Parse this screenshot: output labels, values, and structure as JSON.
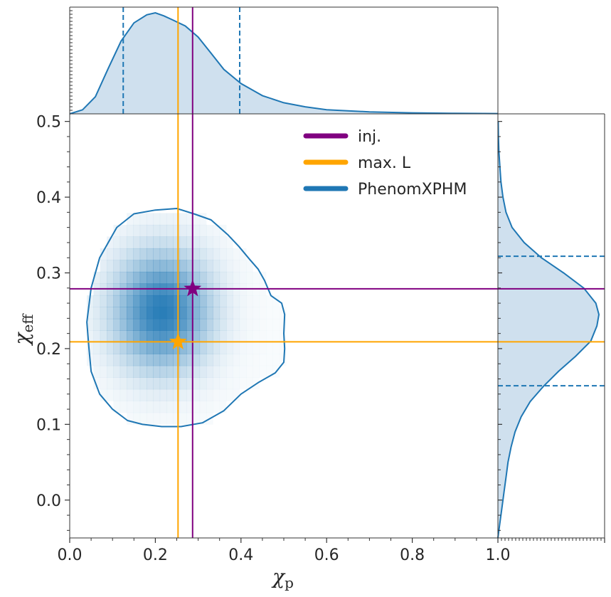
{
  "chart_data": {
    "type": "corner-plot",
    "main": {
      "type": "heatmap",
      "xlabel": "χ",
      "xlabel_sub": "p",
      "ylabel": "χ",
      "ylabel_sub": "eff",
      "xlim": [
        0.0,
        1.0
      ],
      "ylim": [
        -0.05,
        0.51
      ],
      "xticks": [
        "0.0",
        "0.2",
        "0.4",
        "0.6",
        "0.8",
        "1.0"
      ],
      "yticks": [
        "0.0",
        "0.1",
        "0.2",
        "0.3",
        "0.4",
        "0.5"
      ],
      "density": {
        "x_mean": 0.215,
        "x_sigma": 0.075,
        "y_mean": 0.25,
        "y_sigma": 0.052,
        "x_range": [
          0.04,
          0.5
        ],
        "y_range": [
          0.1,
          0.39
        ],
        "cell_size": 0.0155
      },
      "contour_90": [
        [
          0.04,
          0.235
        ],
        [
          0.045,
          0.2
        ],
        [
          0.05,
          0.17
        ],
        [
          0.07,
          0.14
        ],
        [
          0.1,
          0.12
        ],
        [
          0.135,
          0.105
        ],
        [
          0.17,
          0.1
        ],
        [
          0.215,
          0.097
        ],
        [
          0.26,
          0.097
        ],
        [
          0.31,
          0.102
        ],
        [
          0.36,
          0.118
        ],
        [
          0.4,
          0.14
        ],
        [
          0.44,
          0.155
        ],
        [
          0.48,
          0.168
        ],
        [
          0.5,
          0.182
        ],
        [
          0.502,
          0.2
        ],
        [
          0.5,
          0.22
        ],
        [
          0.502,
          0.245
        ],
        [
          0.495,
          0.26
        ],
        [
          0.47,
          0.27
        ],
        [
          0.455,
          0.29
        ],
        [
          0.44,
          0.305
        ],
        [
          0.42,
          0.318
        ],
        [
          0.395,
          0.335
        ],
        [
          0.37,
          0.35
        ],
        [
          0.33,
          0.37
        ],
        [
          0.29,
          0.378
        ],
        [
          0.25,
          0.385
        ],
        [
          0.2,
          0.383
        ],
        [
          0.15,
          0.378
        ],
        [
          0.11,
          0.36
        ],
        [
          0.07,
          0.32
        ],
        [
          0.05,
          0.28
        ]
      ],
      "injection": {
        "x": 0.287,
        "y": 0.279
      },
      "max_likelihood": {
        "x": 0.253,
        "y": 0.209
      }
    },
    "top_marginal": {
      "x": [
        0.0,
        0.03,
        0.06,
        0.09,
        0.12,
        0.15,
        0.18,
        0.2,
        0.22,
        0.24,
        0.27,
        0.3,
        0.33,
        0.36,
        0.4,
        0.45,
        0.5,
        0.55,
        0.6,
        0.7,
        0.8,
        0.9,
        1.0
      ],
      "density": [
        0.0,
        0.04,
        0.17,
        0.45,
        0.72,
        0.9,
        0.98,
        1.0,
        0.97,
        0.93,
        0.87,
        0.76,
        0.6,
        0.44,
        0.3,
        0.18,
        0.11,
        0.07,
        0.04,
        0.02,
        0.01,
        0.005,
        0.003
      ],
      "interval": [
        0.125,
        0.397
      ]
    },
    "right_marginal": {
      "y": [
        -0.05,
        -0.03,
        -0.01,
        0.01,
        0.03,
        0.05,
        0.07,
        0.09,
        0.11,
        0.13,
        0.15,
        0.17,
        0.19,
        0.21,
        0.23,
        0.245,
        0.26,
        0.28,
        0.3,
        0.32,
        0.34,
        0.36,
        0.38,
        0.4,
        0.42,
        0.44,
        0.46,
        0.48,
        0.5
      ],
      "density": [
        0.0,
        0.02,
        0.04,
        0.06,
        0.08,
        0.1,
        0.13,
        0.17,
        0.23,
        0.32,
        0.45,
        0.6,
        0.77,
        0.92,
        0.98,
        1.0,
        0.97,
        0.85,
        0.65,
        0.43,
        0.26,
        0.14,
        0.08,
        0.05,
        0.03,
        0.02,
        0.01,
        0.005,
        0.003
      ],
      "interval": [
        0.151,
        0.322
      ]
    },
    "legend": {
      "placement": "upper center",
      "entries": [
        {
          "label": "inj.",
          "color": "#800080"
        },
        {
          "label": "max. L",
          "color": "#FFA500"
        },
        {
          "label": "PhenomXPHM",
          "color": "#1f77b4"
        }
      ]
    },
    "colors": {
      "injection": "#800080",
      "max_likelihood": "#FFA500",
      "posterior": "#1f77b4",
      "fill": "#cfe0ee"
    }
  }
}
